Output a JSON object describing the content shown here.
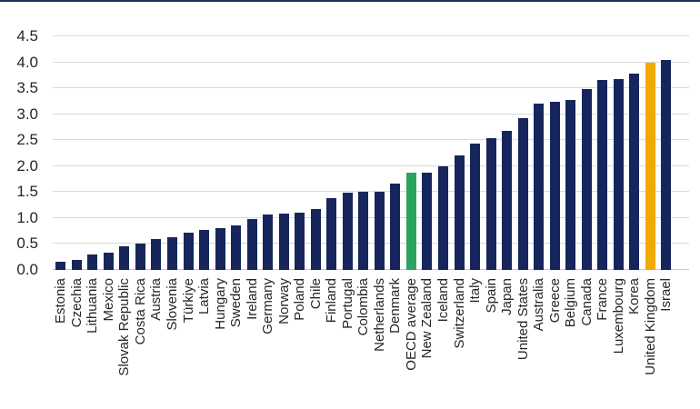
{
  "colors": {
    "bar_default": "#16265C",
    "bar_oecd_average": "#2AA45E",
    "bar_united_kingdom": "#F2A900",
    "gridline": "#D9D9D9",
    "baseline": "#C4C8CF",
    "top_border": "#1F2D58",
    "axis_text": "#262626"
  },
  "chart_data": {
    "type": "bar",
    "title": "",
    "xlabel": "",
    "ylabel": "",
    "ylim": [
      0,
      4.5
    ],
    "ytick_step": 0.5,
    "grid": "horizontal",
    "legend": "none",
    "categories": [
      "Estonia",
      "Czechia",
      "Lithuania",
      "Mexico",
      "Slovak Republic",
      "Costa Rica",
      "Austria",
      "Slovenia",
      "Türkiye",
      "Latvia",
      "Hungary",
      "Sweden",
      "Ireland",
      "Germany",
      "Norway",
      "Poland",
      "Chile",
      "Finland",
      "Portugal",
      "Colombia",
      "Netherlands",
      "Denmark",
      "OECD average",
      "New Zealand",
      "Iceland",
      "Switzerland",
      "Italy",
      "Spain",
      "Japan",
      "United States",
      "Australia",
      "Greece",
      "Belgium",
      "Canada",
      "France",
      "Luxembourg",
      "Korea",
      "United Kingdom",
      "Israel"
    ],
    "values": [
      0.15,
      0.2,
      0.3,
      0.33,
      0.45,
      0.5,
      0.6,
      0.63,
      0.72,
      0.77,
      0.8,
      0.85,
      0.98,
      1.07,
      1.08,
      1.11,
      1.18,
      1.38,
      1.49,
      1.5,
      1.51,
      1.67,
      1.88,
      1.87,
      2.0,
      2.2,
      2.43,
      2.54,
      2.68,
      2.92,
      3.2,
      3.24,
      3.27,
      3.49,
      3.66,
      3.68,
      3.79,
      4.0,
      4.04
    ],
    "highlight_bars": {
      "OECD average": "#2AA45E",
      "United Kingdom": "#F2A900"
    },
    "default_bar_color": "#16265C",
    "ytick_labels": [
      "0.0",
      "0.5",
      "1.0",
      "1.5",
      "2.0",
      "2.5",
      "3.0",
      "3.5",
      "4.0",
      "4.5"
    ]
  }
}
